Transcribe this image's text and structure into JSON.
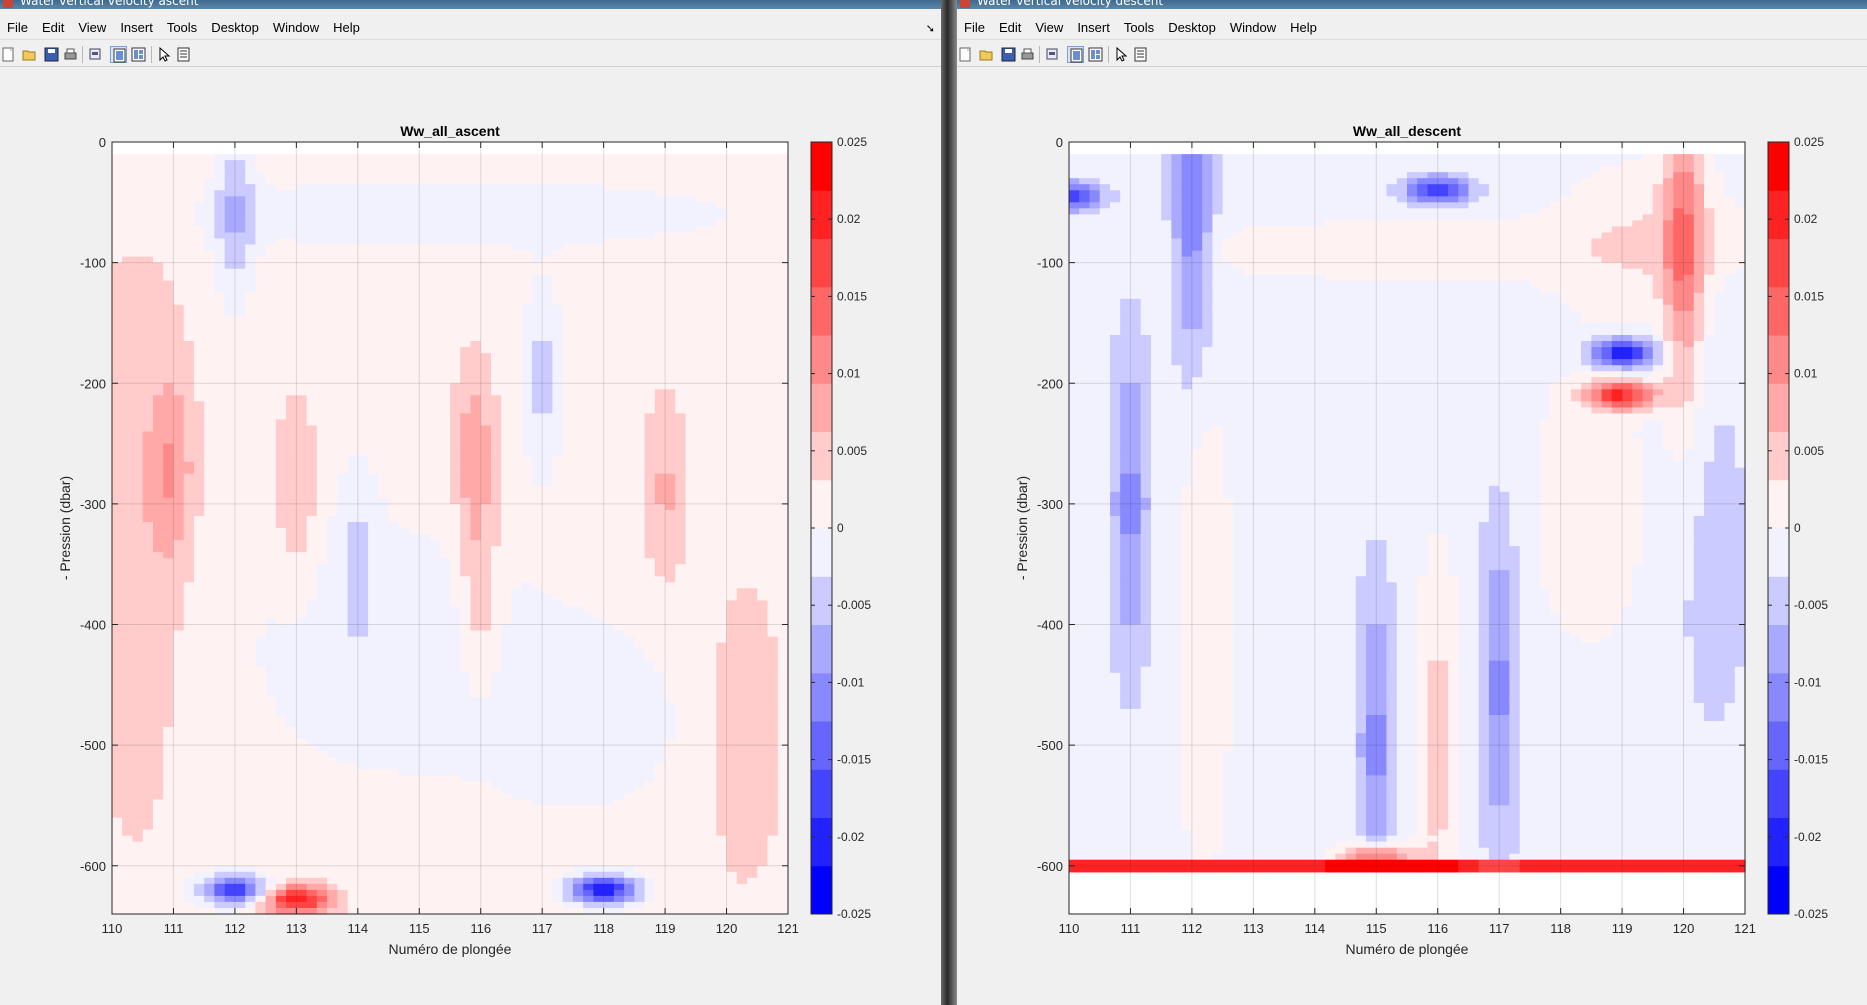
{
  "menus": [
    "File",
    "Edit",
    "View",
    "Insert",
    "Tools",
    "Desktop",
    "Window",
    "Help"
  ],
  "windows": [
    {
      "id": "left",
      "window_title": "Water vertical velocity ascent",
      "toolbar_icons": [
        "new-figure-icon",
        "open-file-icon",
        "save-icon",
        "print-icon",
        "print-preview-icon",
        "hide-plot-tools-icon",
        "show-plot-tools-icon",
        "edit-plot-arrow-icon",
        "property-inspector-icon"
      ]
    },
    {
      "id": "right",
      "window_title": "Water vertical velocity descent",
      "toolbar_icons": [
        "new-figure-icon",
        "open-file-icon",
        "save-icon",
        "print-icon",
        "print-preview-icon",
        "hide-plot-tools-icon",
        "show-plot-tools-icon",
        "edit-plot-arrow-icon",
        "property-inspector-icon"
      ]
    }
  ],
  "chart_data": [
    {
      "type": "heatmap",
      "title": "Ww_all_ascent",
      "xlabel": "Numéro de plongée",
      "ylabel": "- Pression (dbar)",
      "xlim": [
        110,
        121
      ],
      "ylim": [
        -640,
        0
      ],
      "x_ticks": [
        110,
        111,
        112,
        113,
        114,
        115,
        116,
        117,
        118,
        119,
        120,
        121
      ],
      "y_ticks": [
        0,
        -100,
        -200,
        -300,
        -400,
        -500,
        -600
      ],
      "grid": true,
      "colorbar": {
        "min": -0.025,
        "max": 0.025,
        "levels": 16,
        "ticks": [
          0.025,
          0.02,
          0.015,
          0.01,
          0.005,
          0,
          -0.005,
          -0.01,
          -0.015,
          -0.02,
          -0.025
        ],
        "colormap": "blue-white-red"
      },
      "features": [
        {
          "x": 111,
          "y": -270,
          "value": 0.006
        },
        {
          "x": 112,
          "y": -60,
          "value": -0.007
        },
        {
          "x": 113,
          "y": -290,
          "value": 0.005
        },
        {
          "x": 114,
          "y": -340,
          "value": -0.004
        },
        {
          "x": 115.9,
          "y": -260,
          "value": 0.007
        },
        {
          "x": 116,
          "y": -380,
          "value": 0.005
        },
        {
          "x": 117,
          "y": -195,
          "value": -0.006
        },
        {
          "x": 119,
          "y": -290,
          "value": 0.005
        },
        {
          "x": 112,
          "y": -620,
          "value": -0.02
        },
        {
          "x": 113,
          "y": -628,
          "value": 0.02
        },
        {
          "x": 118,
          "y": -620,
          "value": -0.022
        }
      ]
    },
    {
      "type": "heatmap",
      "title": "Ww_all_descent",
      "xlabel": "Numéro de plongée",
      "ylabel": "- Pression (dbar)",
      "xlim": [
        110,
        121
      ],
      "ylim": [
        -640,
        0
      ],
      "x_ticks": [
        110,
        111,
        112,
        113,
        114,
        115,
        116,
        117,
        118,
        119,
        120,
        121
      ],
      "y_ticks": [
        0,
        -100,
        -200,
        -300,
        -400,
        -500,
        -600
      ],
      "grid": true,
      "colorbar": {
        "min": -0.025,
        "max": 0.025,
        "levels": 16,
        "ticks": [
          0.025,
          0.02,
          0.015,
          0.01,
          0.005,
          0,
          -0.005,
          -0.01,
          -0.015,
          -0.02,
          -0.025
        ],
        "colormap": "blue-white-red"
      },
      "features": [
        {
          "x": 110,
          "y": -45,
          "value": -0.016
        },
        {
          "x": 112,
          "y": -40,
          "value": -0.012
        },
        {
          "x": 116,
          "y": -40,
          "value": -0.016
        },
        {
          "x": 120,
          "y": -90,
          "value": 0.012
        },
        {
          "x": 119,
          "y": -210,
          "value": 0.02
        },
        {
          "x": 119,
          "y": -175,
          "value": -0.02
        },
        {
          "x": 111,
          "y": -300,
          "value": -0.009
        },
        {
          "x": 115,
          "y": -500,
          "value": -0.009
        },
        {
          "x": 117,
          "y": -450,
          "value": -0.009
        },
        {
          "x": 116,
          "y": -500,
          "value": 0.006
        },
        {
          "x": 115,
          "y": -595,
          "value": 0.02
        }
      ]
    }
  ]
}
